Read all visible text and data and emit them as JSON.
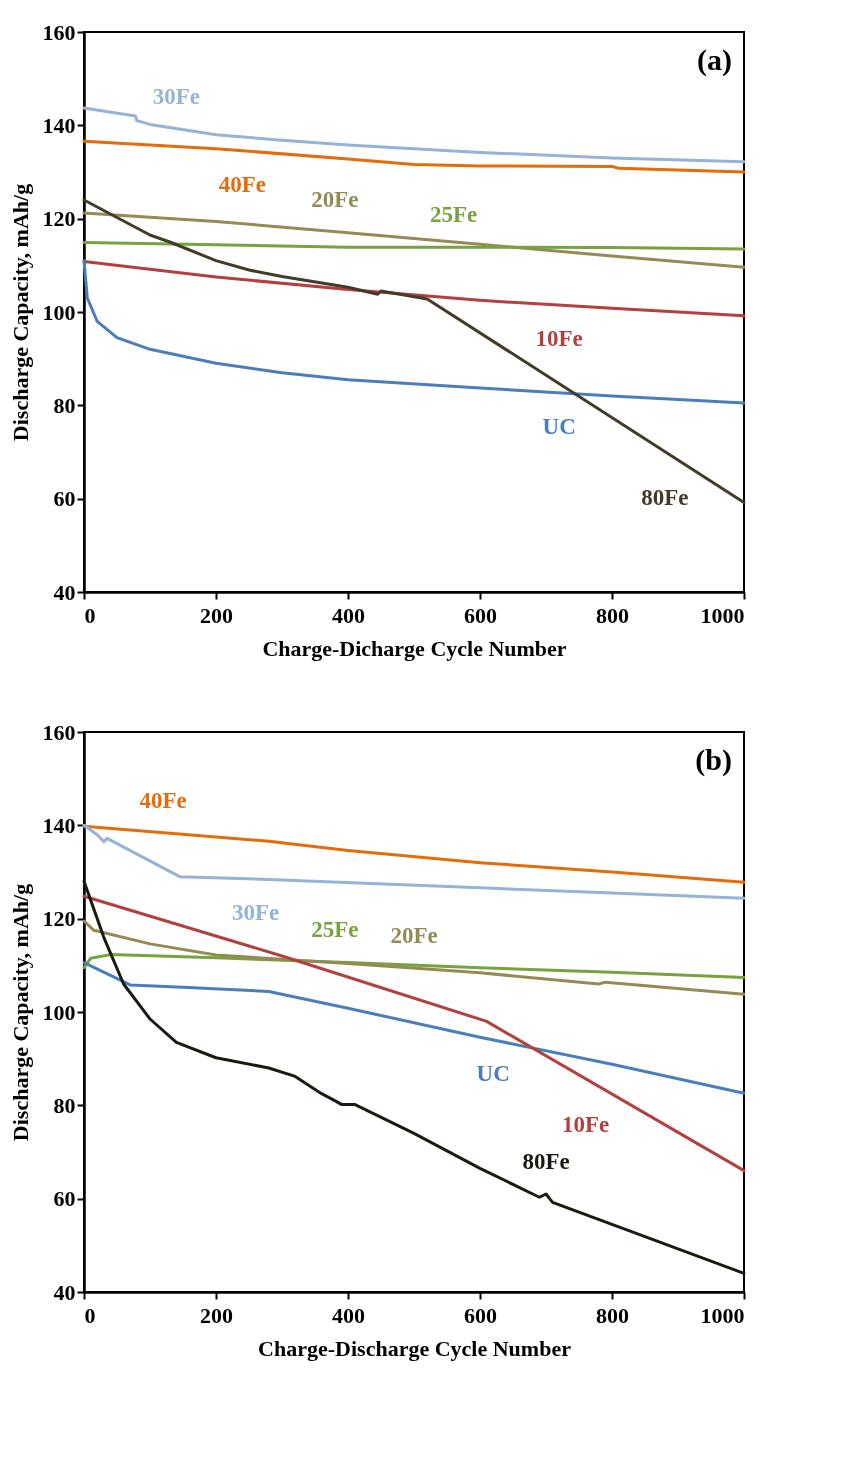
{
  "chart_data": [
    {
      "type": "line",
      "xlabel": "Charge-Dicharge Cycle Number",
      "ylabel": "Discharge Capacity, mAh/g",
      "xlim": [
        0,
        1000
      ],
      "ylim": [
        40,
        160
      ],
      "xticks": [
        0,
        200,
        400,
        600,
        800,
        1000
      ],
      "yticks": [
        40,
        60,
        80,
        100,
        120,
        140,
        160
      ],
      "grid": false,
      "line_style": "solid",
      "series": [
        {
          "name": "30Fe",
          "color": "#95b3d7",
          "x": [
            0,
            78,
            80,
            100,
            200,
            300,
            400,
            500,
            600,
            800,
            1000
          ],
          "values": [
            143.7,
            142.0,
            141.0,
            140.2,
            138.0,
            136.8,
            135.8,
            135.0,
            134.2,
            133.0,
            132.2
          ]
        },
        {
          "name": "40Fe",
          "color": "#e46c0a",
          "x": [
            0,
            200,
            400,
            500,
            600,
            800,
            810,
            1000
          ],
          "values": [
            136.6,
            135.0,
            132.8,
            131.6,
            131.3,
            131.2,
            130.8,
            130.0
          ]
        },
        {
          "name": "20Fe",
          "color": "#948a54",
          "x": [
            0,
            200,
            400,
            600,
            800,
            1000
          ],
          "values": [
            121.2,
            119.4,
            117.0,
            114.5,
            112.0,
            109.6
          ]
        },
        {
          "name": "25Fe",
          "color": "#77a33d",
          "x": [
            0,
            200,
            400,
            600,
            800,
            1000
          ],
          "values": [
            114.9,
            114.4,
            113.9,
            113.9,
            113.8,
            113.5
          ]
        },
        {
          "name": "10Fe",
          "color": "#b3403f",
          "x": [
            0,
            200,
            400,
            600,
            800,
            1000
          ],
          "values": [
            110.8,
            107.5,
            104.8,
            102.5,
            100.8,
            99.2
          ]
        },
        {
          "name": "UC",
          "color": "#4a7ebb",
          "x": [
            0,
            5,
            20,
            50,
            100,
            200,
            300,
            400,
            600,
            800,
            1000
          ],
          "values": [
            111.0,
            103.0,
            98.0,
            94.5,
            92.0,
            89.0,
            87.0,
            85.5,
            83.7,
            82.0,
            80.5
          ]
        },
        {
          "name": "80Fe",
          "color": "#403c28",
          "x": [
            0,
            100,
            130,
            200,
            250,
            300,
            400,
            445,
            450,
            520,
            1000
          ],
          "values": [
            124.0,
            116.5,
            115.0,
            111.0,
            109.0,
            107.6,
            105.3,
            103.8,
            104.5,
            102.8,
            59.2
          ]
        }
      ],
      "annotations": [
        "(a)"
      ]
    },
    {
      "type": "line",
      "xlabel": "Charge-Discharge Cycle Number",
      "ylabel": "Discharge Capacity, mAh/g",
      "xlim": [
        0,
        1000
      ],
      "ylim": [
        40,
        160
      ],
      "xticks": [
        0,
        200,
        400,
        600,
        800,
        1000
      ],
      "yticks": [
        40,
        60,
        80,
        100,
        120,
        140,
        160
      ],
      "grid": false,
      "line_style": "solid",
      "series": [
        {
          "name": "40Fe",
          "color": "#e46c0a",
          "x": [
            0,
            280,
            400,
            600,
            800,
            1000
          ],
          "values": [
            139.8,
            136.6,
            134.6,
            132.0,
            130.0,
            127.8
          ]
        },
        {
          "name": "30Fe",
          "color": "#95b3d7",
          "x": [
            0,
            20,
            30,
            35,
            145,
            300,
            600,
            800,
            1000
          ],
          "values": [
            140.0,
            138.0,
            136.5,
            137.2,
            129.0,
            128.3,
            126.6,
            125.5,
            124.4
          ]
        },
        {
          "name": "25Fe",
          "color": "#77a33d",
          "x": [
            0,
            10,
            40,
            200,
            400,
            600,
            800,
            1000
          ],
          "values": [
            109.5,
            111.5,
            112.3,
            111.6,
            110.6,
            109.5,
            108.5,
            107.4
          ]
        },
        {
          "name": "20Fe",
          "color": "#948a54",
          "x": [
            0,
            15,
            100,
            200,
            400,
            600,
            780,
            790,
            1000
          ],
          "values": [
            119.5,
            117.5,
            114.6,
            112.2,
            110.4,
            108.4,
            106.0,
            106.4,
            103.8
          ]
        },
        {
          "name": "UC",
          "color": "#4a7ebb",
          "x": [
            0,
            70,
            150,
            280,
            400,
            600,
            800,
            1000
          ],
          "values": [
            110.6,
            105.8,
            105.3,
            104.4,
            100.8,
            94.6,
            88.8,
            82.6
          ]
        },
        {
          "name": "10Fe",
          "color": "#b3403f",
          "x": [
            0,
            300,
            610,
            1000
          ],
          "values": [
            124.8,
            112.0,
            98.0,
            66.0
          ]
        },
        {
          "name": "80Fe",
          "color": "#1a1a10",
          "x": [
            0,
            30,
            60,
            100,
            140,
            200,
            280,
            320,
            360,
            380,
            390,
            410,
            500,
            600,
            690,
            700,
            710,
            800,
            1000
          ],
          "values": [
            128.0,
            116.0,
            106.0,
            98.5,
            93.5,
            90.2,
            88.0,
            86.2,
            82.5,
            81.0,
            80.2,
            80.2,
            74.0,
            66.5,
            60.3,
            61.0,
            59.2,
            54.5,
            44.0
          ]
        }
      ],
      "annotations": [
        "(b)"
      ]
    }
  ]
}
